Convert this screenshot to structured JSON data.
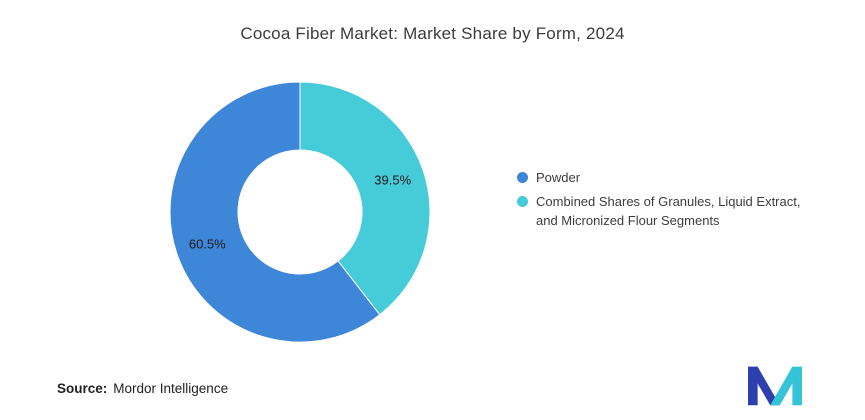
{
  "title": "Cocoa Fiber Market: Market Share by Form, 2024",
  "legend": {
    "position": "right",
    "items": [
      {
        "label": "Powder",
        "color": "#3E86D8"
      },
      {
        "label": "Combined Shares of Granules, Liquid Extract, and Micronized Flour Segments",
        "color": "#46CBD9"
      }
    ]
  },
  "source": {
    "label": "Source:",
    "value": "Mordor Intelligence"
  },
  "logo": {
    "name": "mordor-intelligence-logo",
    "blue": "#2E3FAE",
    "teal": "#35C4D7"
  },
  "chart_data": {
    "type": "pie",
    "subtype": "donut",
    "title": "Cocoa Fiber Market: Market Share by Form, 2024",
    "start_angle_deg": 0,
    "direction": "clockwise",
    "inner_radius_ratio": 0.48,
    "legend_position": "right",
    "labels_inside": true,
    "slices": [
      {
        "label": "Combined Shares of Granules, Liquid Extract, and Micronized Flour Segments",
        "value": 39.5,
        "display": "39.5%",
        "color": "#46CBD9"
      },
      {
        "label": "Powder",
        "value": 60.5,
        "display": "60.5%",
        "color": "#3E86D8"
      }
    ]
  }
}
